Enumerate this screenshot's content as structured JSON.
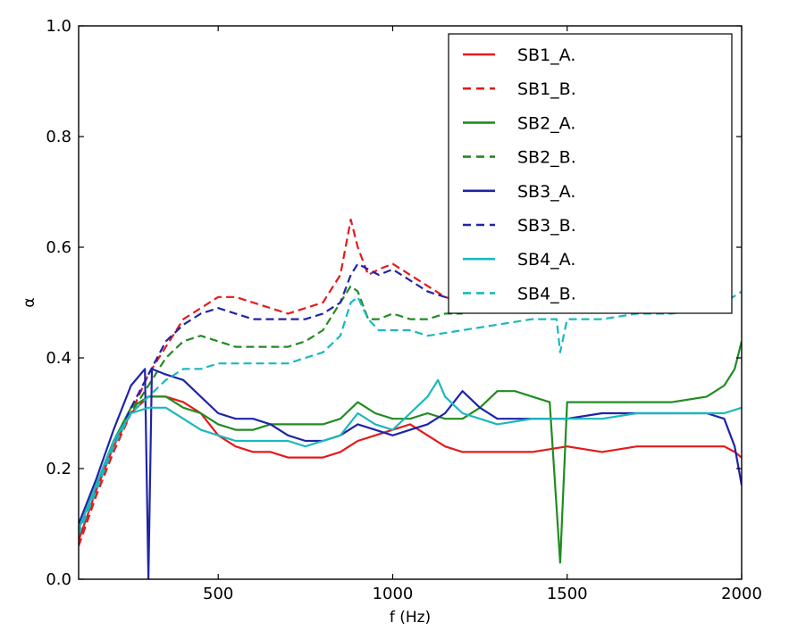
{
  "chart_data": {
    "type": "line",
    "title": "",
    "xlabel": "f (Hz)",
    "ylabel": "α",
    "xlim": [
      100,
      2000
    ],
    "ylim": [
      0.0,
      1.0
    ],
    "xticks": [
      500,
      1000,
      1500,
      2000
    ],
    "xtick_labels": [
      "500",
      "1000",
      "1500",
      "2000"
    ],
    "yticks": [
      0.0,
      0.2,
      0.4,
      0.6,
      0.8,
      1.0
    ],
    "ytick_labels": [
      "0.0",
      "0.2",
      "0.4",
      "0.6",
      "0.8",
      "1.0"
    ],
    "grid": false,
    "legend_position": "top-right",
    "series": [
      {
        "name": "SB1_A.",
        "color": "#e41a1c",
        "dash": "solid",
        "x": [
          100,
          150,
          200,
          250,
          300,
          350,
          400,
          450,
          500,
          550,
          600,
          650,
          700,
          750,
          800,
          850,
          900,
          950,
          1000,
          1050,
          1100,
          1150,
          1200,
          1300,
          1400,
          1500,
          1600,
          1700,
          1800,
          1900,
          1950,
          1980,
          2000
        ],
        "y": [
          0.07,
          0.16,
          0.24,
          0.3,
          0.33,
          0.33,
          0.32,
          0.3,
          0.26,
          0.24,
          0.23,
          0.23,
          0.22,
          0.22,
          0.22,
          0.23,
          0.25,
          0.26,
          0.27,
          0.28,
          0.26,
          0.24,
          0.23,
          0.23,
          0.23,
          0.24,
          0.23,
          0.24,
          0.24,
          0.24,
          0.24,
          0.23,
          0.22
        ]
      },
      {
        "name": "SB1_B.",
        "color": "#e41a1c",
        "dash": "dashed",
        "x": [
          100,
          150,
          200,
          250,
          300,
          350,
          400,
          450,
          500,
          550,
          600,
          650,
          700,
          750,
          800,
          850,
          880,
          900,
          930,
          960,
          1000,
          1050,
          1100,
          1150,
          1200
        ],
        "y": [
          0.06,
          0.15,
          0.23,
          0.3,
          0.37,
          0.42,
          0.47,
          0.49,
          0.51,
          0.51,
          0.5,
          0.49,
          0.48,
          0.49,
          0.5,
          0.55,
          0.65,
          0.6,
          0.55,
          0.56,
          0.57,
          0.55,
          0.53,
          0.51,
          0.5
        ]
      },
      {
        "name": "SB2_A.",
        "color": "#228b22",
        "dash": "solid",
        "x": [
          100,
          150,
          200,
          250,
          300,
          350,
          400,
          450,
          500,
          550,
          600,
          650,
          700,
          750,
          800,
          850,
          900,
          950,
          1000,
          1050,
          1100,
          1150,
          1200,
          1250,
          1300,
          1350,
          1400,
          1450,
          1480,
          1500,
          1600,
          1700,
          1800,
          1900,
          1950,
          1980,
          2000
        ],
        "y": [
          0.09,
          0.17,
          0.25,
          0.31,
          0.33,
          0.33,
          0.31,
          0.3,
          0.28,
          0.27,
          0.27,
          0.28,
          0.28,
          0.28,
          0.28,
          0.29,
          0.32,
          0.3,
          0.29,
          0.29,
          0.3,
          0.29,
          0.29,
          0.31,
          0.34,
          0.34,
          0.33,
          0.32,
          0.03,
          0.32,
          0.32,
          0.32,
          0.32,
          0.33,
          0.35,
          0.38,
          0.43
        ]
      },
      {
        "name": "SB2_B.",
        "color": "#228b22",
        "dash": "dashed",
        "x": [
          100,
          150,
          200,
          250,
          300,
          350,
          400,
          450,
          500,
          550,
          600,
          650,
          700,
          750,
          800,
          850,
          880,
          900,
          930,
          960,
          1000,
          1050,
          1100,
          1150,
          1200
        ],
        "y": [
          0.08,
          0.16,
          0.24,
          0.3,
          0.35,
          0.4,
          0.43,
          0.44,
          0.43,
          0.42,
          0.42,
          0.42,
          0.42,
          0.43,
          0.45,
          0.5,
          0.53,
          0.52,
          0.47,
          0.47,
          0.48,
          0.47,
          0.47,
          0.48,
          0.48
        ]
      },
      {
        "name": "SB3_A.",
        "color": "#1f24a8",
        "dash": "solid",
        "x": [
          100,
          150,
          200,
          250,
          290,
          300,
          310,
          350,
          400,
          450,
          500,
          550,
          600,
          650,
          700,
          750,
          800,
          850,
          900,
          950,
          1000,
          1050,
          1100,
          1150,
          1200,
          1250,
          1300,
          1400,
          1500,
          1600,
          1700,
          1800,
          1900,
          1950,
          1980,
          2000
        ],
        "y": [
          0.1,
          0.18,
          0.27,
          0.35,
          0.38,
          0.0,
          0.38,
          0.37,
          0.36,
          0.33,
          0.3,
          0.29,
          0.29,
          0.28,
          0.26,
          0.25,
          0.25,
          0.26,
          0.28,
          0.27,
          0.26,
          0.27,
          0.28,
          0.3,
          0.34,
          0.31,
          0.29,
          0.29,
          0.29,
          0.3,
          0.3,
          0.3,
          0.3,
          0.29,
          0.24,
          0.17
        ]
      },
      {
        "name": "SB3_B.",
        "color": "#1f24a8",
        "dash": "dashed",
        "x": [
          100,
          150,
          200,
          250,
          300,
          350,
          400,
          450,
          500,
          550,
          600,
          650,
          700,
          750,
          800,
          850,
          880,
          900,
          930,
          960,
          1000,
          1050,
          1100,
          1150,
          1200
        ],
        "y": [
          0.08,
          0.16,
          0.24,
          0.31,
          0.37,
          0.43,
          0.46,
          0.48,
          0.49,
          0.48,
          0.47,
          0.47,
          0.47,
          0.47,
          0.48,
          0.5,
          0.55,
          0.57,
          0.56,
          0.55,
          0.56,
          0.54,
          0.52,
          0.51,
          0.5
        ]
      },
      {
        "name": "SB4_A.",
        "color": "#1bb8bd",
        "dash": "solid",
        "x": [
          100,
          150,
          200,
          250,
          300,
          350,
          400,
          450,
          500,
          550,
          600,
          650,
          700,
          750,
          800,
          850,
          900,
          950,
          1000,
          1050,
          1100,
          1130,
          1150,
          1200,
          1250,
          1300,
          1400,
          1500,
          1600,
          1700,
          1800,
          1900,
          1950,
          2000
        ],
        "y": [
          0.09,
          0.17,
          0.25,
          0.3,
          0.31,
          0.31,
          0.29,
          0.27,
          0.26,
          0.25,
          0.25,
          0.25,
          0.25,
          0.24,
          0.25,
          0.26,
          0.3,
          0.28,
          0.27,
          0.3,
          0.33,
          0.36,
          0.33,
          0.3,
          0.29,
          0.28,
          0.29,
          0.29,
          0.29,
          0.3,
          0.3,
          0.3,
          0.3,
          0.31
        ]
      },
      {
        "name": "SB4_B.",
        "color": "#1bb8bd",
        "dash": "dashed",
        "x": [
          100,
          150,
          200,
          250,
          300,
          350,
          400,
          450,
          500,
          550,
          600,
          650,
          700,
          750,
          800,
          850,
          880,
          900,
          930,
          960,
          1000,
          1050,
          1100,
          1200,
          1300,
          1400,
          1470,
          1480,
          1500,
          1600,
          1700,
          1800,
          1900,
          1950,
          2000
        ],
        "y": [
          0.08,
          0.16,
          0.24,
          0.3,
          0.33,
          0.36,
          0.38,
          0.38,
          0.39,
          0.39,
          0.39,
          0.39,
          0.39,
          0.4,
          0.41,
          0.44,
          0.5,
          0.51,
          0.47,
          0.45,
          0.45,
          0.45,
          0.44,
          0.45,
          0.46,
          0.47,
          0.47,
          0.41,
          0.47,
          0.47,
          0.48,
          0.48,
          0.49,
          0.5,
          0.52
        ]
      }
    ]
  }
}
